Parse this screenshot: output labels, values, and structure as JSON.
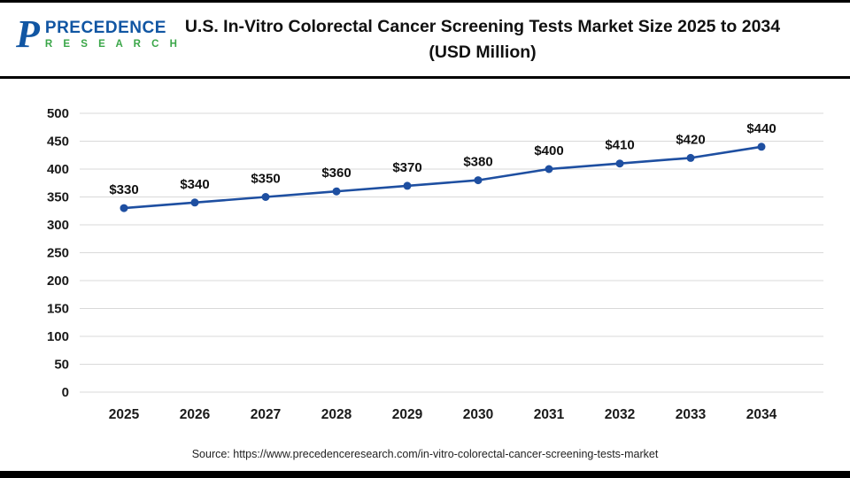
{
  "header": {
    "logo": {
      "p_glyph": "P",
      "line1": "PRECEDENCE",
      "line2": "R E S E A R C H",
      "brand_blue": "#1156a3",
      "brand_green": "#3aa648"
    },
    "title_line1": "U.S. In-Vitro Colorectal Cancer Screening Tests Market Size 2025 to 2034",
    "title_line2": "(USD Million)"
  },
  "chart_data": {
    "type": "line",
    "title": "U.S. In-Vitro Colorectal Cancer Screening Tests Market Size 2025 to 2034 (USD Million)",
    "categories": [
      "2025",
      "2026",
      "2027",
      "2028",
      "2029",
      "2030",
      "2031",
      "2032",
      "2033",
      "2034"
    ],
    "values": [
      330,
      340,
      350,
      360,
      370,
      380,
      400,
      410,
      420,
      440
    ],
    "point_labels": [
      "$330",
      "$340",
      "$350",
      "$360",
      "$370",
      "$380",
      "$400",
      "$410",
      "$420",
      "$440"
    ],
    "xlabel": "",
    "ylabel": "",
    "ylim": [
      0,
      500
    ],
    "ytick_step": 50,
    "grid": "horizontal",
    "legend": "none",
    "line_color": "#1e4fa1",
    "marker_color": "#1e4fa1"
  },
  "footer": {
    "source": "Source: https://www.precedenceresearch.com/in-vitro-colorectal-cancer-screening-tests-market"
  }
}
